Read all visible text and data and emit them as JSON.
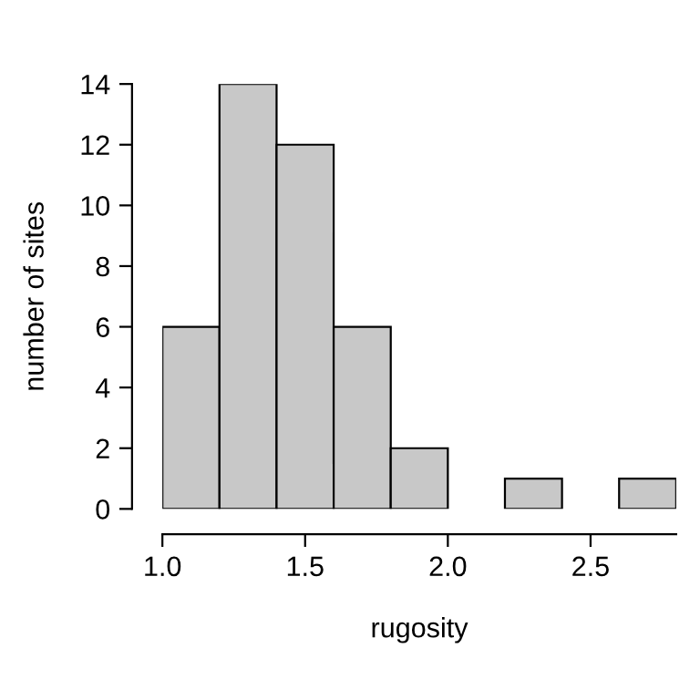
{
  "chart_data": {
    "type": "histogram",
    "xlabel": "rugosity",
    "ylabel": "number of sites",
    "bins": [
      1.0,
      1.2,
      1.4,
      1.6,
      1.8,
      2.0,
      2.2,
      2.4,
      2.6,
      2.8
    ],
    "values": [
      6,
      14,
      12,
      6,
      2,
      0,
      1,
      0,
      1
    ],
    "color": "#c8c8c8",
    "xlim": [
      1.0,
      2.8
    ],
    "xticks": [
      {
        "value": 1.0,
        "label": "1.0"
      },
      {
        "value": 1.5,
        "label": "1.5"
      },
      {
        "value": 2.0,
        "label": "2.0"
      },
      {
        "value": 2.5,
        "label": "2.5"
      }
    ],
    "ylim": [
      0,
      14
    ],
    "yticks": [
      0,
      2,
      4,
      6,
      8,
      10,
      12,
      14
    ],
    "grid": false,
    "legend": false
  }
}
